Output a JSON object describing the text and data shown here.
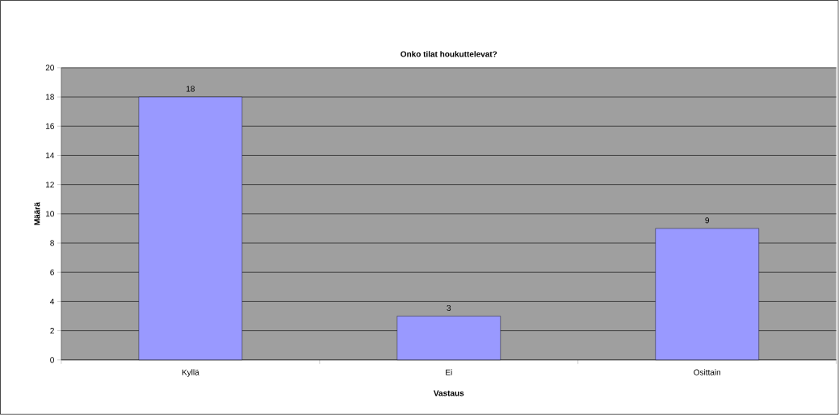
{
  "chart_data": {
    "type": "bar",
    "title": "Onko tilat houkuttelevat?",
    "xlabel": "Vastaus",
    "ylabel": "Määrä",
    "categories": [
      "Kyllä",
      "Ei",
      "Osittain"
    ],
    "values": [
      18,
      3,
      9
    ],
    "color": "#9999ff",
    "ylim": [
      0,
      20
    ],
    "yticks": [
      0,
      2,
      4,
      6,
      8,
      10,
      12,
      14,
      16,
      18,
      20
    ],
    "grid": "y",
    "data_labels": true
  }
}
